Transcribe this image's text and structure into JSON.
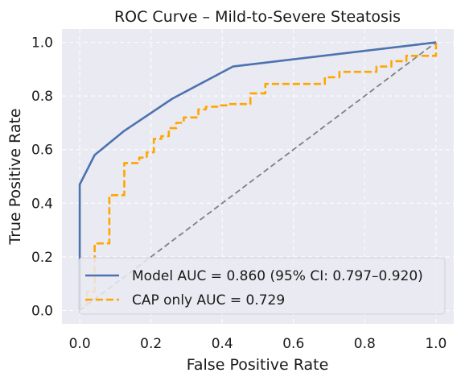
{
  "chart_data": {
    "type": "line",
    "title": "ROC Curve – Mild-to-Severe Steatosis",
    "xlabel": "False Positive Rate",
    "ylabel": "True Positive Rate",
    "xlim": [
      -0.05,
      1.05
    ],
    "ylim": [
      -0.05,
      1.05
    ],
    "xticks": [
      0.0,
      0.2,
      0.4,
      0.6,
      0.8,
      1.0
    ],
    "yticks": [
      0.0,
      0.2,
      0.4,
      0.6,
      0.8,
      1.0
    ],
    "xtick_labels": [
      "0.0",
      "0.2",
      "0.4",
      "0.6",
      "0.8",
      "1.0"
    ],
    "ytick_labels": [
      "0.0",
      "0.2",
      "0.4",
      "0.6",
      "0.8",
      "1.0"
    ],
    "grid": true,
    "legend_position": "lower-right",
    "colors": {
      "plot_background": "#eaeaf2",
      "grid": "#ffffff",
      "model": "#4c72b0",
      "cap": "#ffa500",
      "diagonal": "#808080"
    },
    "series": [
      {
        "name": "Model AUC = 0.860 (95% CI: 0.797–0.920)",
        "style": "solid",
        "x": [
          0.0,
          0.0,
          0.0,
          0.042,
          0.125,
          0.26,
          0.43,
          1.0
        ],
        "y": [
          0.0,
          0.09,
          0.47,
          0.58,
          0.67,
          0.79,
          0.91,
          1.0
        ]
      },
      {
        "name": "CAP only AUC = 0.729",
        "style": "dashed",
        "x": [
          0.0,
          0.0,
          0.021,
          0.021,
          0.042,
          0.042,
          0.083,
          0.083,
          0.125,
          0.125,
          0.167,
          0.167,
          0.188,
          0.188,
          0.208,
          0.208,
          0.229,
          0.229,
          0.25,
          0.25,
          0.271,
          0.271,
          0.292,
          0.292,
          0.333,
          0.333,
          0.354,
          0.354,
          0.396,
          0.396,
          0.417,
          0.417,
          0.479,
          0.479,
          0.521,
          0.521,
          0.688,
          0.688,
          0.729,
          0.729,
          0.833,
          0.833,
          0.875,
          0.875,
          0.917,
          0.917,
          1.0,
          1.0
        ],
        "y": [
          0.0,
          0.02,
          0.02,
          0.07,
          0.07,
          0.25,
          0.25,
          0.43,
          0.43,
          0.55,
          0.55,
          0.57,
          0.57,
          0.59,
          0.59,
          0.64,
          0.64,
          0.65,
          0.65,
          0.68,
          0.68,
          0.7,
          0.7,
          0.72,
          0.72,
          0.75,
          0.75,
          0.76,
          0.76,
          0.765,
          0.765,
          0.77,
          0.77,
          0.81,
          0.81,
          0.845,
          0.845,
          0.87,
          0.87,
          0.89,
          0.89,
          0.91,
          0.91,
          0.93,
          0.93,
          0.95,
          0.95,
          1.0
        ]
      },
      {
        "style": "dashed",
        "x": [
          0.0,
          1.0
        ],
        "y": [
          0.0,
          1.0
        ]
      }
    ]
  }
}
